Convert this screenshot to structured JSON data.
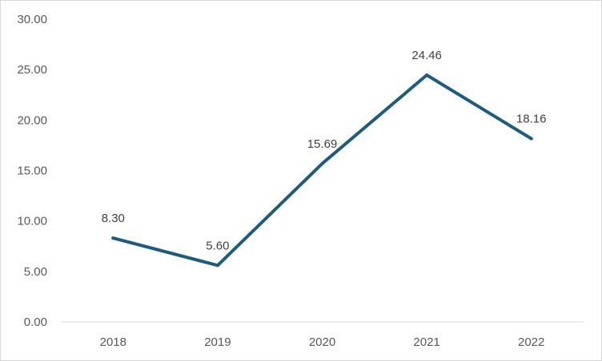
{
  "chart_data": {
    "type": "line",
    "categories": [
      "2018",
      "2019",
      "2020",
      "2021",
      "2022"
    ],
    "series": [
      {
        "values": [
          8.3,
          5.6,
          15.69,
          24.46,
          18.16
        ],
        "labels": [
          "8.30",
          "5.60",
          "15.69",
          "24.46",
          "18.16"
        ],
        "color": "#1f5c7a"
      }
    ],
    "yticks": [
      "0.00",
      "5.00",
      "10.00",
      "15.00",
      "20.00",
      "25.00",
      "30.00"
    ],
    "ylim": [
      0,
      30
    ],
    "grid": false,
    "legend": "none",
    "axis_color": "#d9d9d9"
  }
}
